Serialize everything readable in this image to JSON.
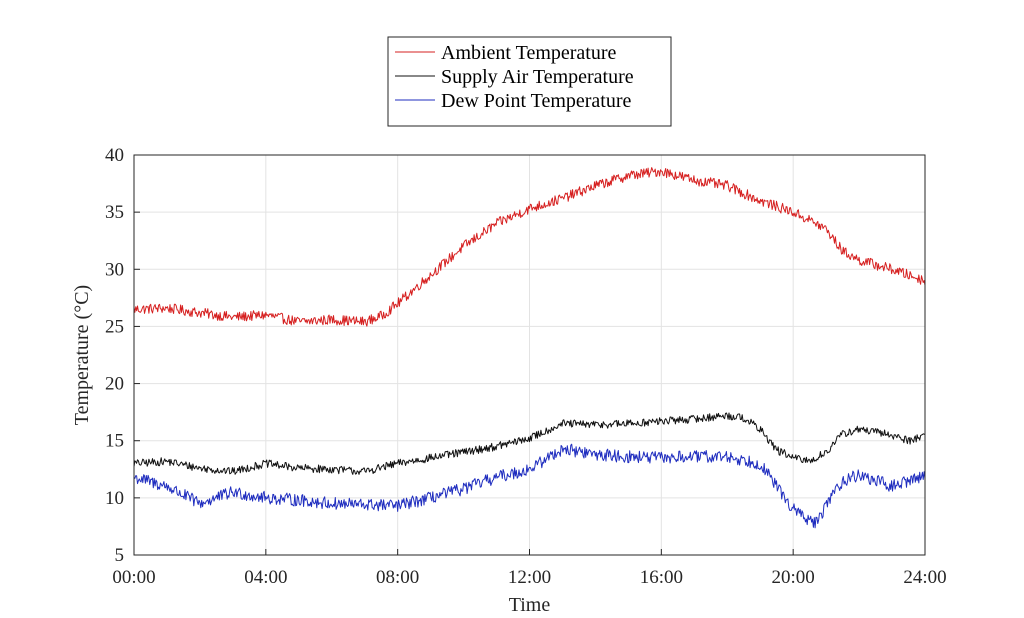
{
  "colors": {
    "ambient": "#d62020",
    "supply": "#111111",
    "dewpoint": "#1f2dbf"
  },
  "chart_data": {
    "type": "line",
    "xlabel": "Time",
    "ylabel": "Temperature (°C)",
    "xlim_hours": [
      0,
      24
    ],
    "ylim": [
      5,
      40
    ],
    "x_ticks": [
      "00:00",
      "04:00",
      "08:00",
      "12:00",
      "16:00",
      "20:00",
      "24:00"
    ],
    "y_ticks": [
      5,
      10,
      15,
      20,
      25,
      30,
      35,
      40
    ],
    "grid": true,
    "legend_position": "top-center",
    "series": [
      {
        "name": "Ambient Temperature",
        "color_key": "ambient",
        "x": [
          "00:00",
          "01:00",
          "02:00",
          "03:00",
          "04:00",
          "05:00",
          "06:00",
          "07:00",
          "07:30",
          "08:00",
          "09:00",
          "10:00",
          "11:00",
          "12:00",
          "13:00",
          "14:00",
          "15:00",
          "16:00",
          "17:00",
          "18:00",
          "19:00",
          "20:00",
          "20:30",
          "21:00",
          "21:30",
          "22:00",
          "23:00",
          "24:00"
        ],
        "values": [
          26.5,
          26.6,
          26.2,
          25.8,
          26.0,
          25.4,
          25.6,
          25.4,
          25.9,
          27.0,
          29.5,
          32.0,
          34.0,
          35.3,
          36.2,
          37.3,
          38.2,
          38.6,
          37.8,
          37.3,
          36.0,
          35.0,
          34.3,
          33.5,
          31.6,
          30.8,
          30.0,
          29.0
        ]
      },
      {
        "name": "Supply Air Temperature",
        "color_key": "supply",
        "x": [
          "00:00",
          "01:00",
          "02:00",
          "03:00",
          "04:00",
          "05:00",
          "06:00",
          "07:00",
          "08:00",
          "09:00",
          "10:00",
          "11:00",
          "12:00",
          "13:00",
          "14:00",
          "15:00",
          "16:00",
          "17:00",
          "18:00",
          "18:30",
          "19:00",
          "19:30",
          "20:00",
          "20:30",
          "21:00",
          "21:30",
          "22:00",
          "23:00",
          "23:30",
          "24:00"
        ],
        "values": [
          13.0,
          13.2,
          12.6,
          12.3,
          13.0,
          12.6,
          12.5,
          12.3,
          13.0,
          13.5,
          14.0,
          14.5,
          15.2,
          16.5,
          16.4,
          16.5,
          16.7,
          16.9,
          17.2,
          17.0,
          16.0,
          14.2,
          13.5,
          13.2,
          14.0,
          15.6,
          16.0,
          15.5,
          15.0,
          15.5
        ]
      },
      {
        "name": "Dew Point Temperature",
        "color_key": "dewpoint",
        "x": [
          "00:00",
          "01:00",
          "02:00",
          "03:00",
          "04:00",
          "05:00",
          "06:00",
          "07:00",
          "08:00",
          "09:00",
          "10:00",
          "11:00",
          "12:00",
          "13:00",
          "14:00",
          "15:00",
          "16:00",
          "17:00",
          "18:00",
          "19:00",
          "19:30",
          "20:00",
          "20:30",
          "20:45",
          "21:00",
          "21:30",
          "22:00",
          "23:00",
          "24:00"
        ],
        "values": [
          11.8,
          11.0,
          9.5,
          10.5,
          10.0,
          9.8,
          9.5,
          9.4,
          9.3,
          10.0,
          10.8,
          11.8,
          12.5,
          14.3,
          13.8,
          13.6,
          13.5,
          13.6,
          13.6,
          13.0,
          11.0,
          9.0,
          8.0,
          7.8,
          9.5,
          11.5,
          12.0,
          11.0,
          12.0
        ]
      }
    ]
  }
}
